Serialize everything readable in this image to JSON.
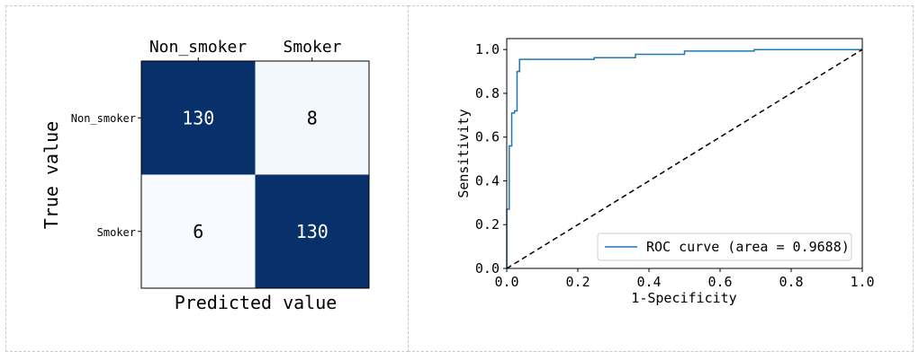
{
  "chart_data": [
    {
      "type": "heatmap",
      "xlabel": "Predicted value",
      "ylabel": "True value",
      "x_categories": [
        "Non_smoker",
        "Smoker"
      ],
      "y_categories": [
        "Non_smoker",
        "Smoker"
      ],
      "values": [
        [
          130,
          8
        ],
        [
          6,
          130
        ]
      ],
      "colormap": "Blues",
      "colors": {
        "high": "#08306b",
        "low": "#f7fbff",
        "text_on_dark": "#ffffff",
        "text_on_light": "#000000"
      }
    },
    {
      "type": "line",
      "xlabel": "1-Specificity",
      "ylabel": "Sensitivity",
      "xlim": [
        0.0,
        1.0
      ],
      "ylim": [
        0.0,
        1.05
      ],
      "xticks": [
        "0.0",
        "0.2",
        "0.4",
        "0.6",
        "0.8",
        "1.0"
      ],
      "yticks": [
        "0.0",
        "0.2",
        "0.4",
        "0.6",
        "0.8",
        "1.0"
      ],
      "legend_position": "lower-right",
      "series": [
        {
          "name": "ROC curve (area = 0.9688)",
          "color": "#1f77b4",
          "style": "solid",
          "x": [
            0.0,
            0.0,
            0.007,
            0.007,
            0.014,
            0.014,
            0.022,
            0.022,
            0.029,
            0.029,
            0.036,
            0.036,
            0.246,
            0.246,
            0.362,
            0.362,
            0.5,
            0.5,
            0.696,
            0.696,
            1.0
          ],
          "y": [
            0.0,
            0.27,
            0.27,
            0.56,
            0.56,
            0.71,
            0.71,
            0.72,
            0.72,
            0.9,
            0.9,
            0.955,
            0.955,
            0.963,
            0.963,
            0.978,
            0.978,
            0.993,
            0.993,
            1.0,
            1.0
          ]
        },
        {
          "color": "#000000",
          "style": "dashed",
          "x": [
            0.0,
            1.0
          ],
          "y": [
            0.0,
            1.0
          ]
        }
      ]
    }
  ]
}
